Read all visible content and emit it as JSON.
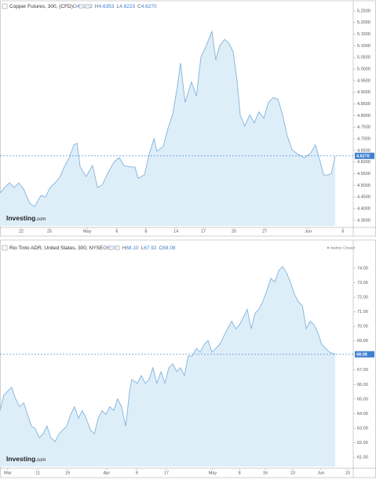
{
  "chart_data": [
    {
      "type": "area",
      "title": "Copper Futures, 300, (CFD)",
      "ohlc": {
        "labels": [
          "O",
          "H",
          "L",
          "C"
        ],
        "values": [
          4.6292,
          4.6353,
          4.6223,
          4.627
        ],
        "value_labels": [
          "4.6292",
          "4.6353",
          "4.6223",
          "4.6270"
        ]
      },
      "last": {
        "value": 4.627,
        "label": "4.6270"
      },
      "brand": "Investing",
      "brand_suffix": ".com",
      "color": "#7fb3dc",
      "fill": "#deeef9",
      "xlim": [
        0,
        100
      ],
      "ylim": [
        4.326,
        5.27
      ],
      "xticks": [
        {
          "value": 6,
          "label": "22"
        },
        {
          "value": 14,
          "label": "25"
        },
        {
          "value": 24.7,
          "label": "May"
        },
        {
          "value": 33.1,
          "label": "6"
        },
        {
          "value": 41.3,
          "label": "8"
        },
        {
          "value": 49.8,
          "label": "14"
        },
        {
          "value": 57.6,
          "label": "17"
        },
        {
          "value": 66.2,
          "label": "20"
        },
        {
          "value": 74.9,
          "label": "27"
        },
        {
          "value": 87.3,
          "label": "Jun"
        },
        {
          "value": 97.1,
          "label": "6"
        }
      ],
      "yticks": [
        {
          "value": 4.35,
          "label": "4.3500"
        },
        {
          "value": 4.4,
          "label": "4.4000"
        },
        {
          "value": 4.45,
          "label": "4.4500"
        },
        {
          "value": 4.5,
          "label": "4.5000"
        },
        {
          "value": 4.55,
          "label": "4.5500"
        },
        {
          "value": 4.6,
          "label": "4.6000"
        },
        {
          "value": 4.65,
          "label": "4.6500"
        },
        {
          "value": 4.7,
          "label": "4.7000"
        },
        {
          "value": 4.75,
          "label": "4.7500"
        },
        {
          "value": 4.8,
          "label": "4.8000"
        },
        {
          "value": 4.85,
          "label": "4.8500"
        },
        {
          "value": 4.9,
          "label": "4.9000"
        },
        {
          "value": 4.95,
          "label": "4.9500"
        },
        {
          "value": 5,
          "label": "5.0000"
        },
        {
          "value": 5.05,
          "label": "5.0500"
        },
        {
          "value": 5.1,
          "label": "5.1000"
        },
        {
          "value": 5.15,
          "label": "5.1500"
        },
        {
          "value": 5.2,
          "label": "5.2000"
        },
        {
          "value": 5.25,
          "label": "5.2500"
        }
      ],
      "x": [
        0,
        1.3,
        2.7,
        4.0,
        5.3,
        6.7,
        8.4,
        9.8,
        11.6,
        12.9,
        14.2,
        15.6,
        16.9,
        18.2,
        19.6,
        20.9,
        21.8,
        22.7,
        24.4,
        26.2,
        27.6,
        28.9,
        30.7,
        32.4,
        33.8,
        35.1,
        36.9,
        38.2,
        39.1,
        40.9,
        42.2,
        43.6,
        44.4,
        46.2,
        47.6,
        48.9,
        50.2,
        51.1,
        52.4,
        54.2,
        55.6,
        56.9,
        58.2,
        60.0,
        61.1,
        62.2,
        63.6,
        64.9,
        66.0,
        67.1,
        68.0,
        69.3,
        70.7,
        72.0,
        73.3,
        74.7,
        76.0,
        77.3,
        78.7,
        80.0,
        81.3,
        82.7,
        84.4,
        86.2,
        88.0,
        89.3,
        90.7,
        91.6,
        92.9,
        93.8,
        94.9
      ],
      "values": [
        4.467,
        4.491,
        4.511,
        4.491,
        4.511,
        4.484,
        4.423,
        4.409,
        4.457,
        4.45,
        4.491,
        4.511,
        4.535,
        4.579,
        4.619,
        4.674,
        4.681,
        4.579,
        4.538,
        4.586,
        4.491,
        4.501,
        4.558,
        4.603,
        4.619,
        4.586,
        4.579,
        4.579,
        4.531,
        4.545,
        4.633,
        4.701,
        4.647,
        4.667,
        4.748,
        4.806,
        4.925,
        5.026,
        4.857,
        4.945,
        4.884,
        5.053,
        5.094,
        5.162,
        5.04,
        5.101,
        5.128,
        5.108,
        5.074,
        4.952,
        4.803,
        4.755,
        4.803,
        4.769,
        4.816,
        4.789,
        4.857,
        4.877,
        4.87,
        4.803,
        4.714,
        4.653,
        4.633,
        4.619,
        4.64,
        4.674,
        4.599,
        4.545,
        4.545,
        4.552,
        4.627
      ]
    },
    {
      "type": "area",
      "title": "Rio Tinto ADR, United States, 300, NYSE",
      "ohlc": {
        "labels": [
          "O",
          "H",
          "L",
          "C"
        ],
        "values": [
          68.08,
          68.1,
          67.92,
          68.08
        ],
        "value_labels": [
          "68.08",
          "68.10",
          "67.92",
          "68.08"
        ]
      },
      "status": "Market Closed",
      "last": {
        "value": 68.08,
        "label": "68.08"
      },
      "brand": "Investing",
      "brand_suffix": ".com",
      "color": "#7fb3dc",
      "fill": "#deeef9",
      "xlim": [
        0,
        100
      ],
      "ylim": [
        60.36,
        75.07
      ],
      "xticks": [
        {
          "value": 2.2,
          "label": "Mar"
        },
        {
          "value": 10.7,
          "label": "11"
        },
        {
          "value": 19.1,
          "label": "19"
        },
        {
          "value": 30.2,
          "label": "Apr"
        },
        {
          "value": 38.7,
          "label": "9"
        },
        {
          "value": 47.1,
          "label": "17"
        },
        {
          "value": 60.2,
          "label": "May"
        },
        {
          "value": 67.8,
          "label": "8"
        },
        {
          "value": 75.1,
          "label": "16"
        },
        {
          "value": 82.9,
          "label": "23"
        },
        {
          "value": 90.9,
          "label": "Jun"
        },
        {
          "value": 98.4,
          "label": "10"
        }
      ],
      "yticks": [
        {
          "value": 61,
          "label": "61.00"
        },
        {
          "value": 62,
          "label": "62.00"
        },
        {
          "value": 63,
          "label": "63.00"
        },
        {
          "value": 64,
          "label": "64.00"
        },
        {
          "value": 65,
          "label": "65.00"
        },
        {
          "value": 66,
          "label": "66.00"
        },
        {
          "value": 67,
          "label": "67.00"
        },
        {
          "value": 69,
          "label": "69.00"
        },
        {
          "value": 70,
          "label": "70.00"
        },
        {
          "value": 71,
          "label": "71.00"
        },
        {
          "value": 72,
          "label": "72.00"
        },
        {
          "value": 73,
          "label": "73.00"
        },
        {
          "value": 74,
          "label": "74.00"
        }
      ],
      "x": [
        0,
        1.1,
        2.2,
        3.3,
        4.4,
        5.6,
        6.7,
        7.8,
        8.9,
        10,
        11.1,
        12.2,
        13.3,
        14.4,
        15.6,
        16.7,
        17.8,
        18.9,
        20,
        21.1,
        22.2,
        23.3,
        24.4,
        25.6,
        26.7,
        27.8,
        28.9,
        30,
        31.1,
        32.2,
        33.3,
        34.4,
        35.6,
        36.7,
        37.3,
        38.9,
        40,
        41.1,
        42.2,
        43.3,
        44.4,
        45.6,
        46.7,
        47.8,
        48.9,
        50,
        51.1,
        52.2,
        53.3,
        54.4,
        55.6,
        56.7,
        57.8,
        58.9,
        60,
        61.1,
        62.2,
        63.3,
        64.4,
        65.6,
        66.7,
        67.8,
        68.9,
        70,
        71.1,
        72.2,
        73.3,
        74.4,
        75.6,
        76.7,
        77.8,
        78.9,
        80,
        81.1,
        82.2,
        83.3,
        84.4,
        85.6,
        86.7,
        87.8,
        88.9,
        90,
        91.1,
        92.2,
        93.3,
        94.9
      ],
      "values": [
        64.21,
        65.28,
        65.55,
        65.82,
        65.02,
        64.48,
        64.75,
        63.95,
        63.14,
        62.98,
        62.34,
        62.61,
        63.14,
        62.34,
        62.07,
        62.61,
        62.88,
        63.14,
        63.95,
        64.48,
        63.68,
        64.21,
        63.68,
        62.88,
        62.61,
        63.68,
        64.21,
        63.95,
        64.48,
        64.21,
        65.02,
        64.48,
        63.14,
        65.55,
        66.35,
        66.09,
        66.62,
        66.09,
        66.35,
        67.16,
        66.09,
        66.89,
        66.09,
        67.16,
        67.42,
        66.89,
        67.16,
        66.62,
        67.96,
        67.96,
        68.49,
        68.22,
        68.76,
        69.03,
        68.22,
        68.49,
        68.76,
        69.29,
        69.83,
        70.36,
        69.83,
        70.1,
        70.63,
        71.17,
        69.83,
        70.9,
        71.17,
        71.7,
        72.5,
        73.3,
        73.04,
        73.84,
        74.11,
        73.68,
        73.04,
        72.24,
        71.7,
        71.43,
        69.83,
        70.36,
        70.1,
        69.56,
        68.76,
        68.49,
        68.22,
        68.08
      ]
    }
  ]
}
